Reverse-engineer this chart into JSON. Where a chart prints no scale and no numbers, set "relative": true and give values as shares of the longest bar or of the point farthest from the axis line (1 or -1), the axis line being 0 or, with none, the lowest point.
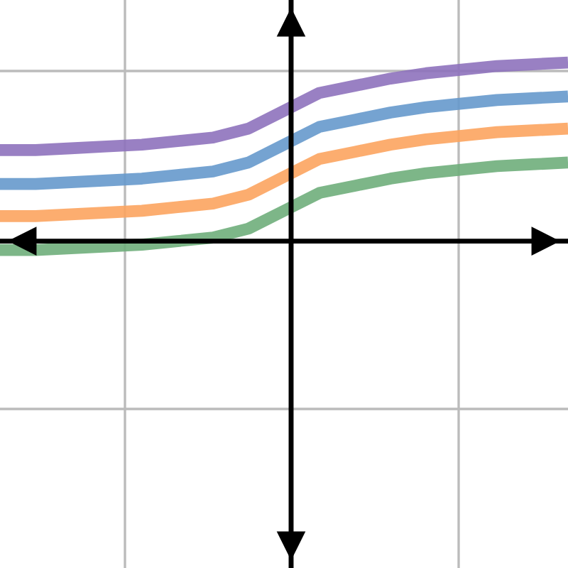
{
  "chart_data": {
    "type": "line",
    "relative": true,
    "grid": true,
    "marker": "none",
    "line_style": "solid",
    "categories": [
      null,
      null,
      null,
      null,
      null,
      null,
      null,
      null,
      null,
      null,
      null,
      null,
      null,
      null,
      null,
      null,
      null
    ],
    "series": [
      {
        "color": "#8e72bd",
        "values": [
          0.51,
          0.51,
          0.52,
          0.53,
          0.54,
          0.56,
          0.58,
          0.63,
          0.73,
          0.83,
          0.87,
          0.91,
          0.94,
          0.96,
          0.98,
          0.99,
          1.0
        ]
      },
      {
        "color": "#6699cc",
        "values": [
          0.32,
          0.32,
          0.33,
          0.34,
          0.35,
          0.37,
          0.39,
          0.44,
          0.54,
          0.64,
          0.68,
          0.72,
          0.75,
          0.77,
          0.79,
          0.8,
          0.81
        ]
      },
      {
        "color": "#fca45f",
        "values": [
          0.14,
          0.14,
          0.15,
          0.16,
          0.17,
          0.19,
          0.21,
          0.26,
          0.36,
          0.46,
          0.5,
          0.54,
          0.57,
          0.59,
          0.61,
          0.62,
          0.63
        ]
      },
      {
        "color": "#6fae7b",
        "values": [
          -0.05,
          -0.05,
          -0.04,
          -0.03,
          -0.02,
          0.0,
          0.02,
          0.07,
          0.17,
          0.27,
          0.31,
          0.35,
          0.38,
          0.4,
          0.42,
          0.43,
          0.44
        ]
      }
    ]
  }
}
